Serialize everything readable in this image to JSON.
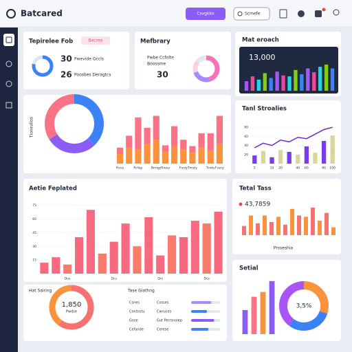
{
  "header": {
    "logo": "Batcared",
    "button": "Csvgkkn",
    "search": "Scmefe"
  },
  "summary": {
    "title": "Tepirelee Fob",
    "tag": "Becreo",
    "stats": [
      {
        "value": 30,
        "label": "Pwevide Gccls"
      },
      {
        "value": 26,
        "label": "Poosbes Deragtcs"
      }
    ],
    "donut": {
      "values": [
        78,
        22
      ],
      "colors": [
        "#3b82f6",
        "#dbe4f5"
      ]
    }
  },
  "library": {
    "title": "Mefbrary",
    "lines": [
      "Pwbe Ccfolte",
      "Boossme"
    ],
    "value": 30,
    "donut": {
      "values": [
        45,
        25,
        15,
        15
      ],
      "colors": [
        "#f472b6",
        "#a78bfa",
        "#fbcfe8",
        "#e5e7eb"
      ]
    }
  },
  "approach": {
    "title": "Mat eroach",
    "value": "13,000",
    "values": [
      30,
      45,
      35,
      55,
      40,
      60,
      48,
      45,
      65,
      52,
      70,
      58,
      75,
      82,
      70
    ],
    "colors": [
      "#a855f7",
      "#ec4899",
      "#22d3ee",
      "#84cc16",
      "#3b82f6"
    ]
  },
  "overview": {
    "axis_label": "Tionealios",
    "donut": {
      "values": [
        38,
        28,
        34
      ],
      "colors": [
        "#3b82f6",
        "#8b5cf6",
        "#fb7185"
      ]
    },
    "categories": [
      "Finsy",
      null,
      "Rrliqy",
      null,
      "Brnigy",
      "Trieey",
      null,
      "Fnniy",
      "Tmsty",
      null,
      "Tnnts",
      "Fssny"
    ],
    "series": [
      {
        "color": "#fb923c",
        "values": [
          12,
          20,
          18,
          25,
          30,
          15,
          22,
          18,
          14,
          20,
          16,
          25
        ]
      },
      {
        "color": "#fb7185",
        "values": [
          8,
          15,
          40,
          20,
          30,
          8,
          25,
          12,
          8,
          18,
          22,
          35
        ]
      }
    ]
  },
  "trends": {
    "title": "Tanl Stroalies",
    "ylim": [
      0,
      100
    ],
    "yticks": [
      20,
      40,
      60,
      80
    ],
    "categories": [
      "5",
      null,
      "10",
      "20",
      null,
      "40",
      "60",
      null,
      "80",
      "100"
    ],
    "line": {
      "color": "#6d28d9",
      "values": [
        35,
        45,
        40,
        52,
        48,
        58,
        55,
        65,
        75,
        80
      ]
    },
    "bars": {
      "colors": [
        "#7c3aed",
        "#d9d59c"
      ],
      "values": [
        18,
        28,
        14,
        30,
        26,
        20,
        38,
        24,
        50,
        62
      ]
    }
  },
  "activity": {
    "title": "Aetie Feplated",
    "ylim": [
      0,
      80
    ],
    "yticks": [
      15,
      30,
      45,
      60,
      75
    ],
    "categories": [
      null,
      null,
      "Dus",
      null,
      null,
      null,
      "Dcs",
      null,
      null,
      null,
      "Qrs",
      null,
      null,
      null,
      "Dcs",
      null
    ],
    "values": [
      12,
      18,
      10,
      40,
      70,
      22,
      35,
      55,
      30,
      62,
      20,
      42,
      40,
      58,
      55,
      68
    ],
    "colors": [
      "#f8697f",
      "#f86a82",
      "#f97b6c"
    ]
  },
  "totals": {
    "title": "Tetal Tass",
    "value": "43,7859",
    "x_label": "Prsseshia",
    "values": [
      14,
      30,
      18,
      30,
      20,
      28,
      16,
      40,
      30,
      28,
      42,
      22,
      34,
      12
    ],
    "colors": [
      "#f87171",
      "#fb923c"
    ]
  },
  "gauge": {
    "title": "Hat Sairing",
    "value": "1,850",
    "caption": "Pwdse",
    "donut": {
      "values": [
        60,
        40
      ],
      "colors": [
        "#f87171",
        "#fb923c"
      ]
    }
  },
  "tasks": {
    "title": "Tase Giathng",
    "rows": [
      {
        "name": "Csnes",
        "status": "Cosses",
        "value": 70,
        "color": "#a78bfa"
      },
      {
        "name": "Contnstu",
        "status": "Cwruces",
        "value": 55,
        "color": "#3b82f6"
      },
      {
        "name": "Gnse",
        "status": "Gut Perrsnolep",
        "value": 80,
        "color": "#8b5cf6"
      },
      {
        "name": "Cefande",
        "status": "Cerese",
        "value": 60,
        "color": "#3b82f6"
      }
    ]
  },
  "social": {
    "title": "Setial",
    "value": "3,5%",
    "bars": {
      "values": [
        40,
        62,
        70,
        88
      ],
      "colors": [
        "#8b5cf6",
        "#fb7185",
        "#fb923c",
        "#8b5cf6"
      ]
    },
    "donut": {
      "values": [
        30,
        30,
        40
      ],
      "colors": [
        "#fb923c",
        "#3b82f6",
        "#a855f7"
      ]
    }
  }
}
